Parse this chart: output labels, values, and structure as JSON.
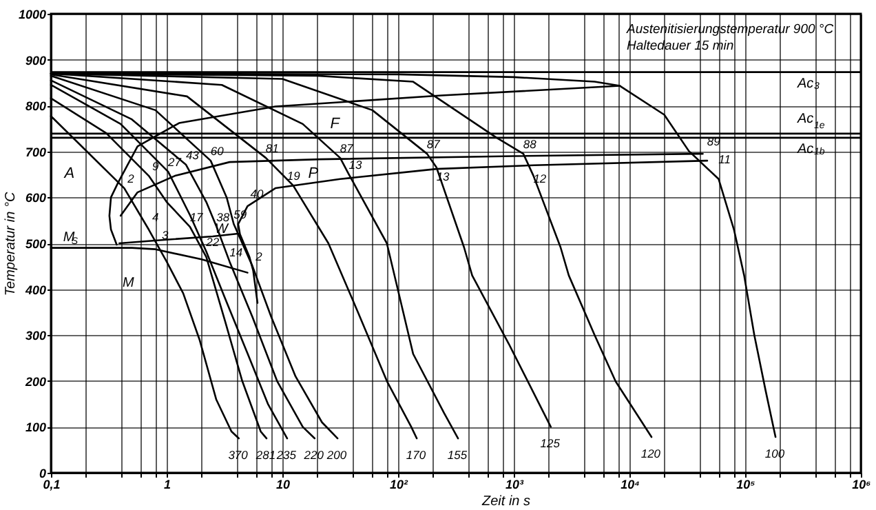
{
  "chart_data": {
    "type": "line",
    "xlabel": "Zeit in s",
    "ylabel": "Temperatur in °C",
    "log": "x",
    "grid": true,
    "line_style": "solid",
    "xlim": [
      0.1,
      1000000
    ],
    "ylim": [
      0,
      1000
    ],
    "xticks": [
      {
        "value": 0.1,
        "label": "0,1"
      },
      {
        "value": 0.2,
        "label": null
      },
      {
        "value": 0.4,
        "label": null
      },
      {
        "value": 0.6,
        "label": null
      },
      {
        "value": 0.8,
        "label": null
      },
      {
        "value": 1,
        "label": "1"
      },
      {
        "value": 2,
        "label": null
      },
      {
        "value": 4,
        "label": null
      },
      {
        "value": 6,
        "label": null
      },
      {
        "value": 8,
        "label": null
      },
      {
        "value": 10,
        "label": "10"
      },
      {
        "value": 20,
        "label": null
      },
      {
        "value": 40,
        "label": null
      },
      {
        "value": 60,
        "label": null
      },
      {
        "value": 80,
        "label": null
      },
      {
        "value": 100,
        "label": "10²"
      },
      {
        "value": 200,
        "label": null
      },
      {
        "value": 400,
        "label": null
      },
      {
        "value": 600,
        "label": null
      },
      {
        "value": 800,
        "label": null
      },
      {
        "value": 1000,
        "label": "10³"
      },
      {
        "value": 2000,
        "label": null
      },
      {
        "value": 4000,
        "label": null
      },
      {
        "value": 6000,
        "label": null
      },
      {
        "value": 8000,
        "label": null
      },
      {
        "value": 10000,
        "label": "10⁴"
      },
      {
        "value": 20000,
        "label": null
      },
      {
        "value": 40000,
        "label": null
      },
      {
        "value": 60000,
        "label": null
      },
      {
        "value": 80000,
        "label": null
      },
      {
        "value": 100000,
        "label": "10⁵"
      },
      {
        "value": 200000,
        "label": null
      },
      {
        "value": 400000,
        "label": null
      },
      {
        "value": 600000,
        "label": null
      },
      {
        "value": 800000,
        "label": null
      },
      {
        "value": 1000000,
        "label": "10⁶"
      }
    ],
    "yticks": [
      0,
      100,
      200,
      300,
      400,
      500,
      600,
      700,
      800,
      900,
      1000
    ],
    "ref_lines": [
      {
        "axis": "y",
        "value": 873,
        "label": "Ac$_{3}$"
      },
      {
        "axis": "y",
        "value": 739,
        "label": "Ac$_{1e}$"
      },
      {
        "axis": "y",
        "value": 730,
        "label": "Ac$_{1b}$"
      }
    ],
    "series": [
      {
        "color": "#000000",
        "x": [
          0.1,
          0.43,
          0.7,
          1.0,
          1.39,
          1.93,
          2.68,
          3.63,
          4.2
        ],
        "values": [
          777,
          620,
          530,
          460,
          391,
          289,
          160,
          90,
          75
        ]
      },
      {
        "color": "#000000",
        "x": [
          0.1,
          0.3,
          0.7,
          1.0,
          1.59,
          2.2,
          3.2,
          4.5,
          6.5,
          7.3
        ],
        "values": [
          816,
          740,
          647,
          590,
          536,
          470,
          330,
          200,
          90,
          75
        ]
      },
      {
        "color": "#000000",
        "x": [
          0.1,
          0.4,
          1.03,
          1.6,
          2.2,
          3.2,
          5,
          7.5,
          11
        ],
        "values": [
          845,
          760,
          656,
          560,
          482,
          380,
          260,
          150,
          75
        ]
      },
      {
        "color": "#000000",
        "x": [
          0.1,
          0.5,
          1.47,
          2.2,
          2.7,
          3.5,
          5.5,
          9,
          15,
          19
        ],
        "values": [
          855,
          770,
          671,
          590,
          536,
          460,
          340,
          200,
          100,
          75
        ]
      },
      {
        "color": "#000000",
        "x": [
          0.1,
          0.8,
          2.4,
          3.3,
          3.8,
          5.5,
          8,
          13,
          22,
          30
        ],
        "values": [
          865,
          790,
          680,
          600,
          542,
          451,
          340,
          210,
          110,
          75
        ]
      },
      {
        "color": "#000000",
        "x": [
          0.1,
          1.5,
          7.2,
          12.4,
          25,
          45,
          80,
          130,
          145
        ],
        "values": [
          868,
          820,
          686,
          626,
          500,
          350,
          200,
          100,
          75
        ]
      },
      {
        "color": "#000000",
        "x": [
          0.1,
          3,
          15,
          31.6,
          37.6,
          80,
          135,
          250,
          330
        ],
        "values": [
          870,
          845,
          760,
          686,
          650,
          500,
          259,
          130,
          75
        ]
      },
      {
        "color": "#000000",
        "x": [
          0.1,
          10,
          60,
          178,
          215,
          372,
          437,
          910,
          2090
        ],
        "values": [
          870,
          858,
          790,
          695,
          665,
          491,
          430,
          280,
          100
        ]
      },
      {
        "color": "#000000",
        "x": [
          0.1,
          20,
          135,
          700,
          1210,
          1480,
          2540,
          2990,
          5000,
          7600,
          15500
        ],
        "values": [
          870,
          865,
          852,
          731,
          695,
          647,
          491,
          430,
          300,
          199,
          78
        ]
      },
      {
        "color": "#000000",
        "x": [
          0.1,
          100,
          1000,
          5000,
          8260,
          20000,
          32600,
          59000,
          80000,
          98000,
          120000,
          150000,
          183000
        ],
        "values": [
          870,
          868,
          862,
          852,
          843,
          780,
          701,
          640,
          530,
          430,
          300,
          180,
          78
        ]
      },
      {
        "color": "#000000",
        "x": [
          0.37,
          0.33,
          0.32,
          0.33,
          0.38,
          0.56,
          1.28,
          8.7,
          237,
          8260
        ],
        "values": [
          497,
          530,
          560,
          600,
          632,
          711,
          762,
          798,
          822,
          843
        ]
      },
      {
        "color": "#000000",
        "x": [
          0.4,
          0.56,
          1.18,
          3.5,
          21,
          1000,
          43000
        ],
        "values": [
          560,
          611,
          647,
          677,
          683,
          690,
          695
        ]
      },
      {
        "color": "#000000",
        "x": [
          6.1,
          5.6,
          5.2,
          4.3,
          4.15,
          5.0,
          8.7,
          31.6,
          215,
          1500,
          47000
        ],
        "values": [
          370,
          440,
          470,
          520,
          542,
          581,
          620,
          640,
          662,
          670,
          680
        ]
      },
      {
        "color": "#000000",
        "x": [
          0.39,
          1,
          2.5,
          4.15
        ],
        "values": [
          500,
          508,
          515,
          521
        ]
      },
      {
        "color": "#000000",
        "x": [
          0.1,
          0.5,
          0.8,
          2,
          5
        ],
        "values": [
          490,
          490,
          487,
          465,
          436
        ]
      }
    ],
    "annotations": [
      "Austenitisierungstemperatur  900 °C",
      "Haltedauer  15 min",
      "A",
      "F",
      "P",
      "W",
      "M",
      "M$_{S}$",
      {
        "text": "2",
        "x": 0.43,
        "y": 620
      },
      {
        "text": "9",
        "x": 0.7,
        "y": 647
      },
      {
        "text": "27",
        "x": 1.03,
        "y": 656
      },
      {
        "text": "43",
        "x": 1.47,
        "y": 671
      },
      {
        "text": "60",
        "x": 2.4,
        "y": 680
      },
      {
        "text": "81",
        "x": 7.2,
        "y": 686
      },
      {
        "text": "87",
        "x": 31.6,
        "y": 686
      },
      {
        "text": "87",
        "x": 178,
        "y": 695
      },
      {
        "text": "13",
        "x": 215,
        "y": 625
      },
      {
        "text": "88",
        "x": 1210,
        "y": 695
      },
      {
        "text": "12",
        "x": 1480,
        "y": 620
      },
      {
        "text": "89",
        "x": 47000,
        "y": 701
      },
      {
        "text": "11",
        "x": 59000,
        "y": 662
      },
      {
        "text": "19",
        "x": 11,
        "y": 626
      },
      {
        "text": "13",
        "x": 37.6,
        "y": 650
      },
      {
        "text": "40",
        "x": 5.3,
        "y": 587
      },
      {
        "text": "4",
        "x": 0.7,
        "y": 536
      },
      {
        "text": "17",
        "x": 1.59,
        "y": 536
      },
      {
        "text": "38",
        "x": 2.7,
        "y": 536
      },
      {
        "text": "59",
        "x": 3.8,
        "y": 542
      },
      {
        "text": "3",
        "x": 0.85,
        "y": 497
      },
      {
        "text": "22",
        "x": 2.2,
        "y": 482
      },
      {
        "text": "14",
        "x": 3.5,
        "y": 460
      },
      {
        "text": "2",
        "x": 5.5,
        "y": 451
      },
      {
        "text": "370",
        "x": 4.2,
        "y": 75
      },
      {
        "text": "281",
        "x": 7.3,
        "y": 75
      },
      {
        "text": "235",
        "x": 11,
        "y": 75
      },
      {
        "text": "220",
        "x": 19,
        "y": 75
      },
      {
        "text": "200",
        "x": 30,
        "y": 75
      },
      {
        "text": "170",
        "x": 145,
        "y": 75
      },
      {
        "text": "155",
        "x": 330,
        "y": 75
      },
      {
        "text": "125",
        "x": 2090,
        "y": 100
      },
      {
        "text": "120",
        "x": 15500,
        "y": 78
      },
      {
        "text": "100",
        "x": 183000,
        "y": 78
      }
    ]
  }
}
